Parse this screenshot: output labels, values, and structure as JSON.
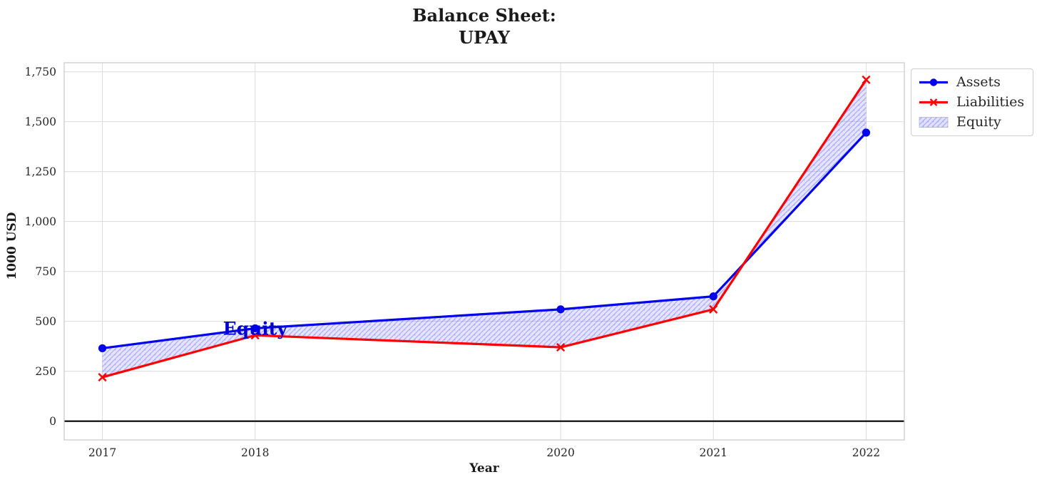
{
  "figure": {
    "title_line1": "Balance Sheet:",
    "title_line2": "UPAY"
  },
  "chart_data": {
    "type": "line",
    "title": "Balance Sheet:\nUPAY",
    "xlabel": "Year",
    "ylabel": "1000 USD",
    "categories": [
      2017,
      2018,
      2020,
      2021,
      2022
    ],
    "x_tick_labels": [
      "2017",
      "2018",
      "2020",
      "2021",
      "2022"
    ],
    "y_ticks": [
      0,
      250,
      500,
      750,
      1000,
      1250,
      1500,
      1750
    ],
    "y_tick_labels": [
      "0",
      "250",
      "500",
      "750",
      "1,000",
      "1,250",
      "1,500",
      "1,750"
    ],
    "xlim": [
      2016.75,
      2022.25
    ],
    "ylim": [
      -94,
      1795
    ],
    "grid": true,
    "grid_color": "#dcdcdc",
    "legend_position": "upper right outside",
    "series": [
      {
        "name": "Assets",
        "color": "#0202ee",
        "marker": "circle",
        "x": [
          2017,
          2018,
          2020,
          2021,
          2022
        ],
        "values": [
          365,
          465,
          560,
          625,
          1445
        ]
      },
      {
        "name": "Liabilities",
        "color": "#fe0000",
        "marker": "x",
        "x": [
          2017,
          2018,
          2020,
          2021,
          2022
        ],
        "values": [
          220,
          430,
          370,
          560,
          1710
        ]
      }
    ],
    "area": {
      "name": "Equity",
      "between": [
        "Assets",
        "Liabilities"
      ],
      "fill_color": "#0000ff",
      "fill_opacity": 0.1,
      "hatch": "/",
      "hatch_color": "#0000ff",
      "hatch_opacity": 0.25
    },
    "annotation": {
      "text": "Equity",
      "x": 2018,
      "y": 463,
      "color": "#0000d6"
    },
    "zero_line": {
      "y": 0,
      "color": "#000000"
    },
    "legend_entries": [
      "Assets",
      "Liabilities",
      "Equity"
    ]
  }
}
